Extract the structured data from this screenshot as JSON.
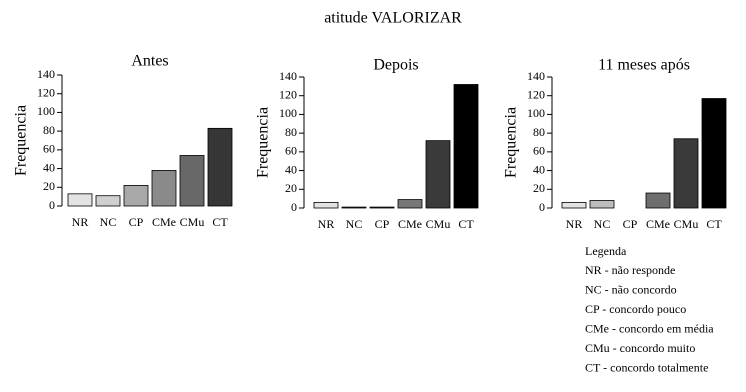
{
  "suptitle": "atitude VALORIZAR",
  "chart_data": [
    {
      "type": "bar",
      "title": "Antes",
      "ylabel": "Frequencia",
      "categories": [
        "NR",
        "NC",
        "CP",
        "CMe",
        "CMu",
        "CT"
      ],
      "values": [
        13,
        11,
        22,
        38,
        54,
        83
      ],
      "colors": [
        "#e3e3e3",
        "#cfcfcf",
        "#a9a9a9",
        "#8a8a8a",
        "#686868",
        "#363636"
      ],
      "ylim": [
        0,
        140
      ],
      "yticks": [
        0,
        20,
        40,
        60,
        80,
        100,
        120,
        140
      ],
      "grid": false
    },
    {
      "type": "bar",
      "title": "Depois",
      "ylabel": "Frequencia",
      "categories": [
        "NR",
        "NC",
        "CP",
        "CMe",
        "CMu",
        "CT"
      ],
      "values": [
        6,
        1,
        1,
        9,
        72,
        132
      ],
      "colors": [
        "#e3e3e3",
        "#555555",
        "#555555",
        "#777777",
        "#3a3a3a",
        "#000000"
      ],
      "ylim": [
        0,
        140
      ],
      "yticks": [
        0,
        20,
        40,
        60,
        80,
        100,
        120,
        140
      ],
      "grid": false
    },
    {
      "type": "bar",
      "title": "11 meses após",
      "ylabel": "Frequencia",
      "categories": [
        "NR",
        "NC",
        "CP",
        "CMe",
        "CMu",
        "CT"
      ],
      "values": [
        6,
        8,
        0,
        16,
        74,
        117
      ],
      "colors": [
        "#e3e3e3",
        "#bdbdbd",
        "#999999",
        "#6e6e6e",
        "#3a3a3a",
        "#000000"
      ],
      "ylim": [
        0,
        140
      ],
      "yticks": [
        0,
        20,
        40,
        60,
        80,
        100,
        120,
        140
      ],
      "grid": false
    }
  ],
  "legend": {
    "title": "Legenda",
    "entries": [
      "NR - não responde",
      "NC - não concordo",
      "CP - concordo pouco",
      "CMe - concordo em média",
      "CMu - concordo muito",
      "CT - concordo totalmente"
    ]
  }
}
